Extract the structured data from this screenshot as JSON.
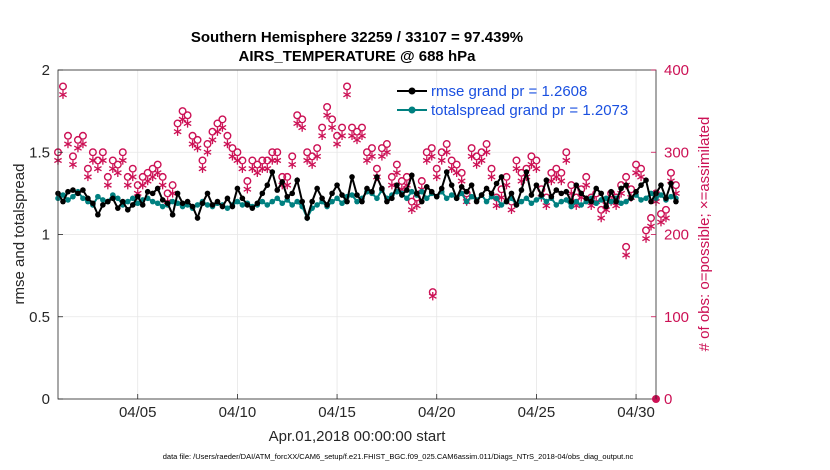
{
  "chart_data": {
    "type": "line",
    "title": "Southern Hemisphere 32259 / 33107 = 97.439%",
    "subtitle": "AIRS_TEMPERATURE @ 688 hPa",
    "xlabel": "Apr.01,2018 00:00:00 start",
    "ylabel": "rmse and totalspread",
    "y2label": "# of obs: o=possible; ×=assimilated",
    "xlim": [
      1,
      31
    ],
    "ylim": [
      0,
      2
    ],
    "y2lim": [
      0,
      400
    ],
    "x_tick_labels": [
      "04/05",
      "04/10",
      "04/15",
      "04/20",
      "04/25",
      "04/30"
    ],
    "x_tick_values": [
      5,
      10,
      15,
      20,
      25,
      30
    ],
    "y_tick_labels": [
      "0",
      "0.5",
      "1",
      "1.5",
      "2"
    ],
    "y2_tick_labels": [
      "0",
      "100",
      "200",
      "300",
      "400"
    ],
    "footnote": "data file: /Users/raeder/DAI/ATM_forcXX/CAM6_setup/f.e21.FHIST_BGC.f09_025.CAM6assim.011/Diags_NTrS_2018-04/obs_diag_output.nc",
    "legend": [
      "rmse grand pr = 1.2608",
      "totalspread grand pr = 1.2073"
    ],
    "colors": {
      "rmse": "#000000",
      "spread": "#008080",
      "obs": "#cc1155"
    },
    "x_start": 1.0,
    "x_step": 0.25,
    "series": [
      {
        "name": "rmse",
        "values": [
          1.25,
          1.2,
          1.26,
          1.27,
          1.25,
          1.27,
          1.22,
          1.19,
          1.12,
          1.18,
          1.2,
          1.22,
          1.16,
          1.2,
          1.15,
          1.18,
          1.23,
          1.18,
          1.26,
          1.25,
          1.28,
          1.21,
          1.19,
          1.12,
          1.25,
          1.19,
          1.2,
          1.17,
          1.1,
          1.19,
          1.25,
          1.18,
          1.2,
          1.17,
          1.22,
          1.17,
          1.28,
          1.22,
          1.18,
          1.16,
          1.19,
          1.25,
          1.3,
          1.38,
          1.27,
          1.32,
          1.23,
          1.25,
          1.33,
          1.2,
          1.1,
          1.2,
          1.28,
          1.22,
          1.18,
          1.25,
          1.3,
          1.24,
          1.2,
          1.35,
          1.24,
          1.2,
          1.28,
          1.26,
          1.35,
          1.28,
          1.2,
          1.22,
          1.3,
          1.24,
          1.27,
          1.36,
          1.25,
          1.2,
          1.29,
          1.26,
          1.23,
          1.28,
          1.38,
          1.3,
          1.22,
          1.29,
          1.26,
          1.3,
          1.2,
          1.24,
          1.28,
          1.25,
          1.31,
          1.35,
          1.2,
          1.25,
          1.18,
          1.27,
          1.38,
          1.24,
          1.3,
          1.24,
          1.33,
          1.23,
          1.27,
          1.25,
          1.26,
          1.2,
          1.3,
          1.25,
          1.22,
          1.2,
          1.28,
          1.25,
          1.17,
          1.26,
          1.2,
          1.28,
          1.3,
          1.22,
          1.26,
          1.3,
          1.33,
          1.2,
          1.25,
          1.3,
          1.22,
          1.31,
          1.2
        ],
        "marker": "filled-circle"
      },
      {
        "name": "totalspread",
        "values": [
          1.22,
          1.24,
          1.21,
          1.23,
          1.26,
          1.22,
          1.2,
          1.18,
          1.23,
          1.21,
          1.2,
          1.24,
          1.22,
          1.18,
          1.2,
          1.22,
          1.19,
          1.21,
          1.22,
          1.2,
          1.19,
          1.17,
          1.18,
          1.2,
          1.19,
          1.17,
          1.18,
          1.16,
          1.18,
          1.2,
          1.18,
          1.17,
          1.19,
          1.18,
          1.16,
          1.18,
          1.2,
          1.18,
          1.19,
          1.17,
          1.18,
          1.2,
          1.18,
          1.2,
          1.22,
          1.19,
          1.21,
          1.18,
          1.2,
          1.17,
          1.1,
          1.16,
          1.18,
          1.2,
          1.17,
          1.2,
          1.22,
          1.19,
          1.23,
          1.24,
          1.2,
          1.22,
          1.26,
          1.25,
          1.22,
          1.27,
          1.22,
          1.24,
          1.26,
          1.25,
          1.22,
          1.26,
          1.24,
          1.26,
          1.22,
          1.25,
          1.23,
          1.26,
          1.22,
          1.24,
          1.22,
          1.25,
          1.2,
          1.23,
          1.21,
          1.24,
          1.2,
          1.23,
          1.22,
          1.18,
          1.2,
          1.22,
          1.18,
          1.2,
          1.22,
          1.19,
          1.21,
          1.23,
          1.2,
          1.22,
          1.18,
          1.2,
          1.21,
          1.17,
          1.2,
          1.18,
          1.2,
          1.22,
          1.19,
          1.21,
          1.22,
          1.2,
          1.22,
          1.19,
          1.2,
          1.22,
          1.24,
          1.21,
          1.22,
          1.25,
          1.22,
          1.24,
          1.21,
          1.23,
          1.22
        ],
        "marker": "filled-circle"
      }
    ],
    "obs_possible": [
      300,
      380,
      320,
      295,
      315,
      320,
      280,
      300,
      290,
      300,
      270,
      290,
      285,
      300,
      270,
      280,
      260,
      270,
      275,
      280,
      285,
      270,
      250,
      260,
      335,
      350,
      345,
      320,
      315,
      290,
      310,
      325,
      335,
      340,
      320,
      305,
      300,
      290,
      265,
      290,
      285,
      290,
      290,
      300,
      300,
      270,
      270,
      295,
      345,
      340,
      300,
      295,
      305,
      330,
      355,
      340,
      320,
      330,
      380,
      330,
      325,
      330,
      300,
      305,
      280,
      305,
      310,
      270,
      285,
      265,
      270,
      240,
      245,
      265,
      300,
      305,
      280,
      300,
      310,
      290,
      285,
      275,
      250,
      305,
      295,
      300,
      310,
      280,
      245,
      255,
      270,
      240,
      290,
      275,
      280,
      295,
      290,
      255,
      245,
      275,
      280,
      275,
      300,
      260,
      245,
      255,
      270,
      245,
      250,
      230,
      240,
      250,
      245,
      260,
      270,
      255,
      285,
      280,
      205,
      220,
      250,
      225,
      230,
      275,
      260
    ],
    "obs_assimilated": [
      290,
      370,
      310,
      285,
      305,
      310,
      270,
      290,
      280,
      290,
      260,
      280,
      275,
      290,
      260,
      270,
      250,
      260,
      265,
      270,
      275,
      260,
      240,
      250,
      325,
      340,
      335,
      310,
      305,
      280,
      300,
      315,
      325,
      330,
      310,
      295,
      290,
      280,
      255,
      280,
      275,
      280,
      280,
      290,
      290,
      260,
      260,
      285,
      335,
      330,
      290,
      285,
      295,
      320,
      345,
      330,
      310,
      320,
      370,
      320,
      315,
      320,
      290,
      295,
      270,
      295,
      300,
      260,
      275,
      255,
      260,
      230,
      235,
      255,
      290,
      295,
      270,
      290,
      300,
      280,
      275,
      265,
      240,
      295,
      285,
      290,
      300,
      270,
      235,
      245,
      260,
      230,
      280,
      265,
      270,
      285,
      280,
      245,
      235,
      265,
      270,
      265,
      290,
      250,
      235,
      245,
      260,
      235,
      240,
      220,
      230,
      240,
      235,
      250,
      260,
      245,
      275,
      270,
      195,
      210,
      240,
      215,
      220,
      265,
      250
    ],
    "obs_outlier": {
      "x": 19.8,
      "possible": 130,
      "assimilated": 125
    },
    "obs_outlier2": {
      "x": 29.5,
      "possible": 185,
      "assimilated": 175
    },
    "obs_final": {
      "x": 31.0,
      "value": 0
    }
  }
}
